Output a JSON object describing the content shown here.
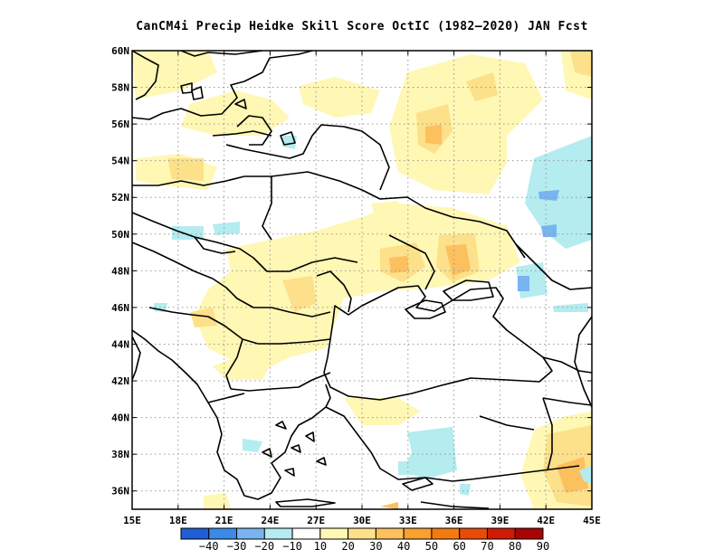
{
  "title": "CanCM4i Precip Heidke Skill Score OctIC (1982–2020) JAN Fcst",
  "map": {
    "lon_range": [
      15,
      45
    ],
    "lat_range": [
      35,
      60
    ],
    "lon_ticks": [
      "15E",
      "18E",
      "21E",
      "24E",
      "27E",
      "30E",
      "33E",
      "36E",
      "39E",
      "42E",
      "45E"
    ],
    "lat_ticks": [
      "36N",
      "38N",
      "40N",
      "42N",
      "44N",
      "46N",
      "48N",
      "50N",
      "52N",
      "54N",
      "56N",
      "58N",
      "60N"
    ],
    "grid": "dotted",
    "region": "Eastern Europe / Black Sea"
  },
  "colorbar": {
    "labels": [
      "−40",
      "−30",
      "−20",
      "−10",
      "10",
      "20",
      "30",
      "40",
      "50",
      "60",
      "70",
      "80",
      "90"
    ],
    "colors": [
      "#1e5fd6",
      "#3c8ae8",
      "#78b4f0",
      "#b4ecf0",
      "#ffffff",
      "#fff7b4",
      "#fde08a",
      "#fcc05e",
      "#f8a030",
      "#f47a10",
      "#e84a08",
      "#d01a04",
      "#a80404"
    ]
  }
}
